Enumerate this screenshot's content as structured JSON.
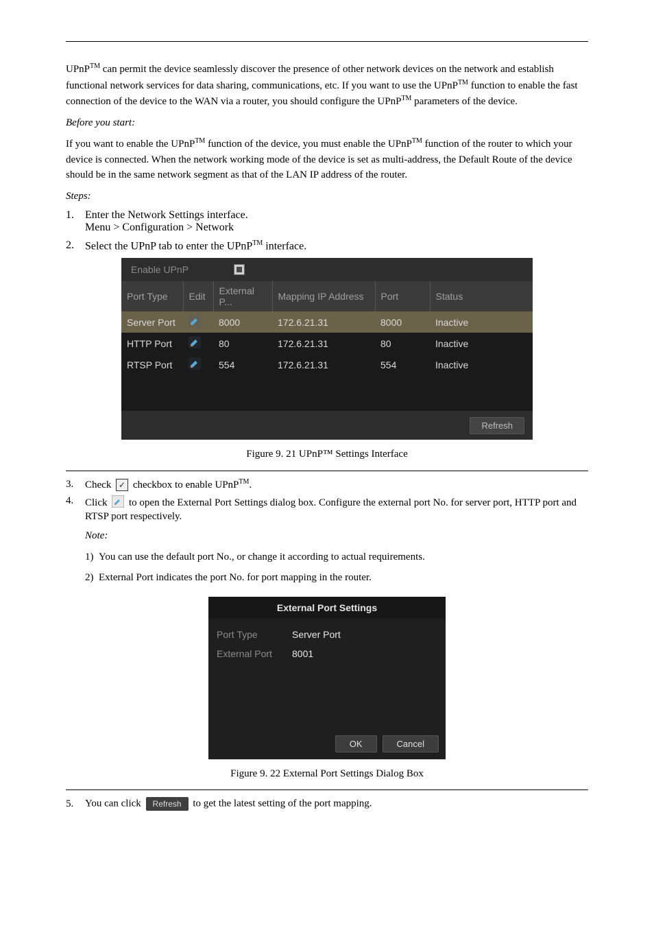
{
  "paras": {
    "p1a": "UPnP",
    "p1b": " can permit the device seamlessly discover the presence of other network devices on the network and establish functional network services for data sharing, communications, etc. If you want to use the UPnP",
    "p1c": " function to enable the fast connection of the device to the WAN via a router, you should configure the UPnP",
    "p1d": " parameters of the device.",
    "before": "Before you start:",
    "before_body": "If you want to enable the UPnP",
    "before_body2": " function of the device, you must enable the UPnP",
    "before_body3": " function of the router to which your device is connected. When the network working mode of the device is set as multi-address, the Default Route of the device should be in the same network segment as that of the LAN IP address of the router.",
    "steps": "Steps:",
    "s1_a": "Enter the Network Settings interface.",
    "s1_b": "Menu > Configuration > Network",
    "s2": "Select the UPnP tab to enter the UPnP",
    "s2b": " interface.",
    "s3a": "checkbox to enable UPnP",
    "s3b": ".",
    "s4a": "to open the External Port Settings dialog box. Configure the external port No. for server port, HTTP port and RTSP port respectively.",
    "note": "Note:",
    "note1": "You can use the default port No., or change it according to actual requirements.",
    "note2": "External Port indicates the port No. for port mapping in the router.",
    "s5": "to get the latest setting of the port mapping.",
    "check_lbl": "Check",
    "click_lbl": "Click",
    "click_refresh": "You can click"
  },
  "sup": "TM",
  "upnp": {
    "enable_label": "Enable UPnP",
    "cols": {
      "type": "Port Type",
      "edit": "Edit",
      "ext": "External P...",
      "map": "Mapping IP Address",
      "port": "Port",
      "status": "Status"
    },
    "rows": [
      {
        "type": "Server Port",
        "ext": "8000",
        "map": "172.6.21.31",
        "port": "8000",
        "status": "Inactive",
        "sel": true
      },
      {
        "type": "HTTP Port",
        "ext": "80",
        "map": "172.6.21.31",
        "port": "80",
        "status": "Inactive",
        "sel": false
      },
      {
        "type": "RTSP Port",
        "ext": "554",
        "map": "172.6.21.31",
        "port": "554",
        "status": "Inactive",
        "sel": false
      }
    ],
    "refresh": "Refresh"
  },
  "fig1": "Figure 9. 21  UPnP™ Settings Interface",
  "dlg": {
    "title": "External Port Settings",
    "porttype_lbl": "Port Type",
    "porttype_val": "Server Port",
    "extport_lbl": "External Port",
    "extport_val": "8001",
    "ok": "OK",
    "cancel": "Cancel"
  },
  "fig2": "Figure 9. 22  External Port Settings Dialog Box",
  "refresh_small": "Refresh",
  "nums": {
    "n1": "1.",
    "n2": "2.",
    "n3": "3.",
    "n4": "4.",
    "n5": "5."
  },
  "edit_icon_stroke": "#5aa8d6",
  "edit_icon_bg": "#3a5b73"
}
